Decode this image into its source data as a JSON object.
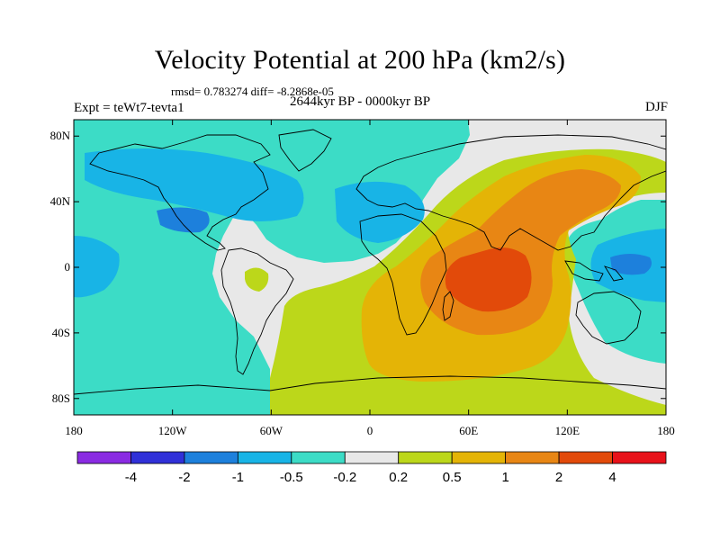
{
  "header": {
    "title": "Velocity Potential at 200 hPa (km2/s)",
    "stats": "rmsd= 0.783274 diff= -8.2868e-05",
    "period": "2644kyr BP - 0000kyr BP",
    "expt": "Expt = teWt7-tevta1",
    "season": "DJF"
  },
  "axes": {
    "y_ticks": [
      {
        "lat": 80,
        "label": "80N"
      },
      {
        "lat": 40,
        "label": "40N"
      },
      {
        "lat": 0,
        "label": "0"
      },
      {
        "lat": -40,
        "label": "40S"
      },
      {
        "lat": -80,
        "label": "80S"
      }
    ],
    "x_ticks": [
      {
        "lon": -180,
        "label": "180"
      },
      {
        "lon": -120,
        "label": "120W"
      },
      {
        "lon": -60,
        "label": "60W"
      },
      {
        "lon": 0,
        "label": "0"
      },
      {
        "lon": 60,
        "label": "60E"
      },
      {
        "lon": 120,
        "label": "120E"
      },
      {
        "lon": 180,
        "label": "180"
      }
    ],
    "lon_range": [
      -180,
      180
    ],
    "lat_range": [
      -90,
      90
    ]
  },
  "colorbar": {
    "colors": [
      "#8a2be2",
      "#3030d8",
      "#1d80dc",
      "#18b4e6",
      "#3cdcc6",
      "#e8e8e8",
      "#bcd71a",
      "#e4b406",
      "#e88614",
      "#e24a0a",
      "#e8121a"
    ],
    "labels": [
      "-4",
      "-2",
      "-1",
      "-0.5",
      "-0.2",
      "0.2",
      "0.5",
      "1",
      "2",
      "4"
    ]
  },
  "fields": {
    "background_color": "#e8e8e8",
    "coastline_color": "#000000"
  }
}
